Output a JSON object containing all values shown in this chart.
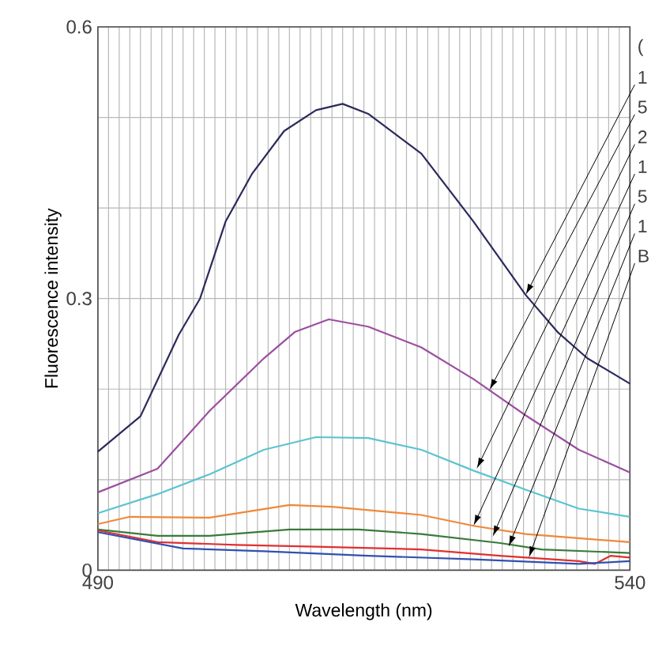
{
  "chart_data": {
    "type": "line",
    "xlabel": "Wavelength (nm)",
    "ylabel": "Fluorescence intensity",
    "grid": true,
    "xlim": [
      490,
      540
    ],
    "ylim": [
      0,
      0.6
    ],
    "xticks": [
      490,
      {
        "value": 491,
        "label": null
      },
      {
        "value": 492,
        "label": null
      },
      {
        "value": 493,
        "label": null
      },
      {
        "value": 494,
        "label": null
      },
      {
        "value": 495,
        "label": null
      },
      {
        "value": 496,
        "label": null
      },
      {
        "value": 497,
        "label": null
      },
      {
        "value": 498,
        "label": null
      },
      {
        "value": 499,
        "label": null
      },
      {
        "value": 500,
        "label": null
      },
      {
        "value": 501,
        "label": null
      },
      {
        "value": 502,
        "label": null
      },
      {
        "value": 503,
        "label": null
      },
      {
        "value": 504,
        "label": null
      },
      {
        "value": 505,
        "label": null
      },
      {
        "value": 506,
        "label": null
      },
      {
        "value": 507,
        "label": null
      },
      {
        "value": 508,
        "label": null
      },
      {
        "value": 509,
        "label": null
      },
      {
        "value": 510,
        "label": null
      },
      {
        "value": 511,
        "label": null
      },
      {
        "value": 512,
        "label": null
      },
      {
        "value": 513,
        "label": null
      },
      {
        "value": 514,
        "label": null
      },
      {
        "value": 515,
        "label": null
      },
      {
        "value": 516,
        "label": null
      },
      {
        "value": 517,
        "label": null
      },
      {
        "value": 518,
        "label": null
      },
      {
        "value": 519,
        "label": null
      },
      {
        "value": 520,
        "label": null
      },
      {
        "value": 521,
        "label": null
      },
      {
        "value": 522,
        "label": null
      },
      {
        "value": 523,
        "label": null
      },
      {
        "value": 524,
        "label": null
      },
      {
        "value": 525,
        "label": null
      },
      {
        "value": 526,
        "label": null
      },
      {
        "value": 527,
        "label": null
      },
      {
        "value": 528,
        "label": null
      },
      {
        "value": 529,
        "label": null
      },
      {
        "value": 530,
        "label": null
      },
      {
        "value": 531,
        "label": null
      },
      {
        "value": 532,
        "label": null
      },
      {
        "value": 533,
        "label": null
      },
      {
        "value": 534,
        "label": null
      },
      {
        "value": 535,
        "label": null
      },
      {
        "value": 536,
        "label": null
      },
      {
        "value": 537,
        "label": null
      },
      {
        "value": 538,
        "label": null
      },
      {
        "value": 539,
        "label": null
      },
      540
    ],
    "yticks": [
      0,
      {
        "value": 0.1,
        "label": null
      },
      {
        "value": 0.2,
        "label": null
      },
      0.3,
      {
        "value": 0.4,
        "label": null
      },
      {
        "value": 0.5,
        "label": null
      },
      0.6
    ],
    "series": [
      {
        "color": "#2b2a5c",
        "x": [
          490,
          494,
          497.6,
          499.6,
          502,
          504.5,
          507.5,
          510.5,
          513,
          515.4,
          520.4,
          525.3,
          530.2,
          533.2,
          536,
          540
        ],
        "values": [
          0.131,
          0.17,
          0.26,
          0.3,
          0.385,
          0.438,
          0.485,
          0.508,
          0.515,
          0.504,
          0.46,
          0.385,
          0.304,
          0.263,
          0.234,
          0.206
        ]
      },
      {
        "color": "#9b4fa0",
        "x": [
          490,
          495.6,
          500.5,
          505.6,
          508.5,
          511.7,
          515.4,
          520.4,
          525.3,
          530.2,
          535.2,
          540
        ],
        "values": [
          0.086,
          0.112,
          0.176,
          0.234,
          0.263,
          0.277,
          0.269,
          0.246,
          0.211,
          0.171,
          0.133,
          0.108
        ]
      },
      {
        "color": "#5bc4d0",
        "x": [
          490,
          495.6,
          500.5,
          505.6,
          510.5,
          515.4,
          520.4,
          525.3,
          530.2,
          535.2,
          540
        ],
        "values": [
          0.063,
          0.084,
          0.106,
          0.133,
          0.147,
          0.146,
          0.133,
          0.11,
          0.089,
          0.068,
          0.059
        ]
      },
      {
        "color": "#f0883a",
        "x": [
          490,
          493,
          500.5,
          508,
          512,
          520.4,
          525.3,
          530.2,
          540
        ],
        "values": [
          0.051,
          0.059,
          0.058,
          0.072,
          0.07,
          0.061,
          0.049,
          0.04,
          0.031
        ]
      },
      {
        "color": "#3a7a3a",
        "x": [
          490,
          495.6,
          500.5,
          508,
          514.5,
          520.4,
          527.8,
          531.7,
          540
        ],
        "values": [
          0.045,
          0.038,
          0.038,
          0.045,
          0.045,
          0.04,
          0.03,
          0.023,
          0.019
        ]
      },
      {
        "color": "#e03030",
        "x": [
          490,
          495.6,
          503,
          510.5,
          520.4,
          527.8,
          535.2,
          536.7,
          538.2,
          540
        ],
        "values": [
          0.044,
          0.031,
          0.028,
          0.026,
          0.023,
          0.016,
          0.01,
          0.007,
          0.016,
          0.014
        ]
      },
      {
        "color": "#3050b0",
        "x": [
          490,
          498,
          505.6,
          515.4,
          525.3,
          535.2,
          540
        ],
        "values": [
          0.042,
          0.024,
          0.021,
          0.016,
          0.012,
          0.007,
          0.01
        ]
      }
    ],
    "annotations": [
      "(",
      {
        "text": "1",
        "x": 530.2,
        "y": 0.304
      },
      {
        "text": "5",
        "x": 526.8,
        "y": 0.199
      },
      {
        "text": "2",
        "x": 525.6,
        "y": 0.112
      },
      {
        "text": "1",
        "x": 525.3,
        "y": 0.049
      },
      {
        "text": "5",
        "x": 527.1,
        "y": 0.037
      },
      {
        "text": "1",
        "x": 528.6,
        "y": 0.026
      },
      {
        "text": "B",
        "x": 530.5,
        "y": 0.014
      }
    ]
  }
}
